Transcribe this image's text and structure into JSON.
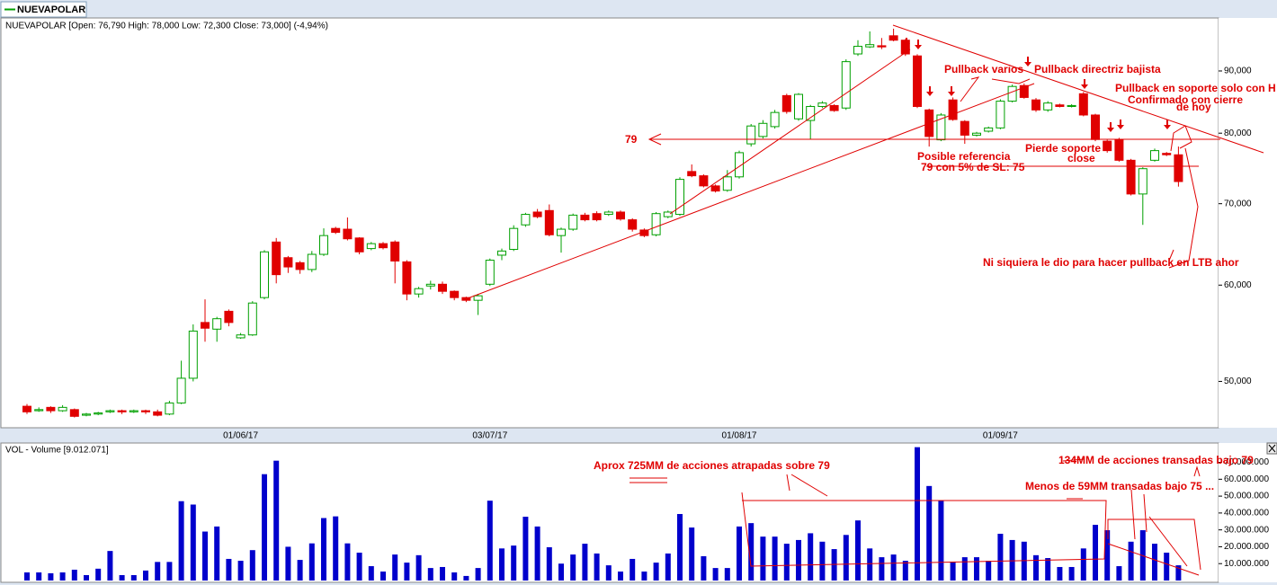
{
  "tab": "NUEVAPOLAR",
  "chart_data": [
    {
      "type": "candlestick",
      "title": "NUEVAPOLAR [Open: 76,790  High: 78,000  Low: 72,300  Close: 73,000] (-4,94%)",
      "categories": [
        null,
        null,
        null,
        null,
        null,
        null,
        null,
        null,
        null,
        null,
        null,
        null,
        null,
        null,
        null,
        null,
        null,
        null,
        "01/06/17",
        null,
        null,
        null,
        null,
        null,
        null,
        null,
        null,
        null,
        null,
        null,
        null,
        null,
        null,
        null,
        null,
        null,
        null,
        null,
        null,
        "03/07/17",
        null,
        null,
        null,
        null,
        null,
        null,
        null,
        null,
        null,
        null,
        null,
        null,
        null,
        null,
        null,
        null,
        null,
        null,
        null,
        null,
        "01/08/17",
        null,
        null,
        null,
        null,
        null,
        null,
        null,
        null,
        null,
        null,
        null,
        null,
        null,
        null,
        null,
        null,
        null,
        null,
        null,
        null,
        null,
        "01/09/17",
        null,
        null,
        null,
        null,
        null,
        null,
        null,
        null,
        null,
        null,
        null,
        null,
        null,
        null,
        null
      ],
      "open": [
        47.7,
        47.3,
        47.6,
        47.3,
        47.4,
        46.9,
        47.0,
        47.2,
        47.3,
        47.2,
        47.3,
        47.2,
        47.0,
        48.0,
        50.3,
        55.9,
        55.2,
        57.1,
        54.3,
        54.6,
        58.6,
        65.1,
        63.2,
        62.6,
        61.8,
        63.6,
        66.8,
        66.7,
        65.6,
        64.3,
        64.9,
        65.1,
        62.7,
        59.0,
        59.9,
        60.1,
        59.3,
        58.6,
        58.3,
        60.1,
        63.5,
        64.2,
        67.25,
        68.9,
        69.1,
        65.9,
        66.7,
        68.5,
        68.7,
        68.6,
        68.9,
        67.9,
        66.6,
        66.0,
        68.3,
        68.6,
        74.4,
        73.8,
        72.4,
        71.8,
        73.65,
        78.4,
        79.5,
        81.0,
        85.9,
        82.2,
        81.95,
        84.15,
        84.3,
        83.9,
        92.95,
        94.2,
        94.4,
        96.2,
        95.4,
        92.6,
        83.6,
        79.0,
        85.2,
        81.8,
        79.7,
        80.3,
        80.8,
        85.0,
        87.55,
        85.2,
        83.6,
        84.4,
        84.15,
        86.2,
        82.8,
        78.8,
        79.05,
        76.0,
        71.3,
        76.0,
        77.0,
        76.79
      ],
      "high": [
        47.9,
        47.6,
        47.7,
        47.8,
        47.5,
        47.1,
        47.2,
        47.4,
        47.4,
        47.4,
        47.4,
        47.4,
        48.2,
        52.0,
        55.7,
        58.4,
        56.5,
        57.3,
        54.8,
        58.2,
        64.1,
        65.6,
        63.4,
        62.8,
        64.0,
        66.8,
        67.0,
        68.2,
        65.7,
        65.1,
        65.1,
        65.3,
        62.9,
        59.8,
        60.5,
        60.4,
        59.4,
        58.7,
        59.0,
        63.1,
        64.3,
        67.2,
        68.8,
        69.3,
        69.9,
        66.9,
        68.7,
        68.8,
        69.0,
        69.1,
        69.1,
        68.1,
        66.8,
        68.9,
        69.1,
        73.6,
        75.4,
        74.0,
        72.6,
        74.6,
        77.4,
        81.4,
        82.0,
        83.6,
        86.2,
        86.3,
        84.4,
        85.0,
        84.5,
        92.0,
        95.4,
        97.0,
        95.8,
        97.5,
        95.6,
        92.9,
        83.8,
        83.1,
        85.6,
        82.0,
        80.2,
        81.0,
        85.3,
        87.7,
        87.9,
        85.5,
        85.0,
        84.6,
        84.5,
        86.5,
        83.0,
        79.0,
        79.3,
        76.2,
        75.0,
        77.7,
        77.2,
        78.0
      ],
      "low": [
        47.0,
        47.2,
        47.1,
        47.2,
        46.7,
        46.8,
        46.9,
        47.1,
        47.0,
        47.1,
        47.0,
        46.8,
        46.9,
        47.9,
        50.0,
        53.9,
        53.9,
        55.5,
        54.2,
        54.5,
        58.4,
        60.2,
        61.4,
        61.3,
        61.5,
        63.4,
        66.1,
        65.3,
        63.6,
        64.1,
        64.2,
        60.2,
        58.3,
        58.6,
        59.5,
        59.0,
        58.3,
        58.1,
        56.7,
        59.9,
        62.9,
        64.0,
        67.0,
        68.1,
        65.8,
        63.8,
        66.5,
        67.7,
        67.7,
        68.4,
        67.8,
        66.4,
        65.7,
        65.8,
        68.1,
        68.4,
        73.6,
        72.2,
        71.5,
        71.6,
        73.4,
        78.0,
        79.2,
        80.7,
        83.0,
        81.9,
        79.05,
        83.9,
        83.3,
        83.6,
        92.6,
        94.0,
        93.8,
        95.2,
        92.6,
        83.9,
        78.0,
        78.8,
        81.9,
        78.4,
        79.5,
        80.1,
        80.6,
        84.8,
        85.4,
        83.3,
        83.3,
        84.0,
        84.0,
        82.6,
        78.8,
        77.1,
        75.8,
        71.1,
        67.25,
        75.8,
        76.6,
        72.3
      ],
      "close": [
        47.2,
        47.4,
        47.3,
        47.6,
        46.8,
        47.0,
        47.1,
        47.3,
        47.2,
        47.3,
        47.2,
        46.9,
        48.0,
        50.3,
        55.0,
        55.3,
        56.3,
        55.9,
        54.6,
        58.0,
        63.9,
        61.2,
        62.1,
        61.8,
        63.6,
        65.9,
        66.3,
        65.5,
        63.9,
        64.9,
        64.4,
        62.8,
        59.0,
        59.6,
        60.1,
        59.3,
        58.6,
        58.3,
        58.8,
        62.9,
        64.0,
        66.8,
        68.6,
        68.3,
        66.0,
        66.7,
        68.5,
        67.9,
        67.9,
        68.9,
        68.0,
        66.7,
        65.9,
        68.7,
        68.9,
        73.3,
        73.8,
        72.4,
        71.7,
        73.65,
        77.1,
        81.1,
        81.5,
        83.2,
        83.35,
        86.1,
        84.15,
        84.7,
        83.5,
        91.6,
        94.3,
        94.6,
        94.2,
        95.4,
        92.95,
        84.15,
        79.5,
        82.8,
        82.1,
        79.7,
        80.0,
        80.8,
        85.0,
        87.4,
        85.6,
        83.6,
        84.7,
        84.15,
        84.3,
        82.8,
        79.05,
        77.4,
        76.0,
        71.3,
        74.8,
        77.4,
        76.8,
        73.0
      ],
      "up_color": "#00a000",
      "down_color": "#e00000",
      "log_scale": true,
      "ylim": [
        45.8,
        99.5
      ],
      "yticks": [
        {
          "value": 50,
          "label": "50,000"
        },
        {
          "value": 60,
          "label": "60,000"
        },
        {
          "value": 70,
          "label": "70,000"
        },
        {
          "value": 80,
          "label": "80,000"
        },
        {
          "value": 90,
          "label": "90,000"
        }
      ],
      "annotations": [
        "79",
        "Pullback varios",
        "Pullback directriz bajista",
        "Pullback en soporte solo con H",
        "Confirmado con cierre",
        "de hoy",
        "Posible referencia",
        "79 con 5% de SL: 75",
        "Pierde soporte",
        "close",
        "Ni siquiera le dio para hacer pullback en LTB ahor"
      ]
    },
    {
      "type": "bar",
      "title": "VOL - Volume [9.012.071]",
      "values": [
        4800000,
        4800000,
        4300000,
        4800000,
        6400000,
        3200000,
        7000000,
        17500000,
        3200000,
        3200000,
        5900000,
        11000000,
        11000000,
        47000000,
        45000000,
        29000000,
        32000000,
        12800000,
        11700000,
        18000000,
        63000000,
        71000000,
        20000000,
        12200000,
        22000000,
        37000000,
        38000000,
        22000000,
        16500000,
        8500000,
        5300000,
        15400000,
        10600000,
        15000000,
        7400000,
        8000000,
        4800000,
        2700000,
        7400000,
        47300000,
        19000000,
        20700000,
        37800000,
        32000000,
        19700000,
        10000000,
        15400000,
        21800000,
        16000000,
        9000000,
        5300000,
        12800000,
        5300000,
        10600000,
        16000000,
        39400000,
        31400000,
        14400000,
        7400000,
        7400000,
        32000000,
        34000000,
        26000000,
        26000000,
        21800000,
        24000000,
        28000000,
        23000000,
        18600000,
        27000000,
        35600000,
        19000000,
        13800000,
        15400000,
        11700000,
        79000000,
        56000000,
        47300000,
        11200000,
        13800000,
        13800000,
        11700000,
        27700000,
        24000000,
        23000000,
        15000000,
        13300000,
        8000000,
        8000000,
        19000000,
        33000000,
        29800000,
        8500000,
        23000000,
        29800000,
        21800000,
        16500000,
        9012071
      ],
      "color": "#0000cc",
      "ylim": [
        0,
        82000000
      ],
      "yticks": [
        {
          "value": 10000000,
          "label": "10.000.000"
        },
        {
          "value": 20000000,
          "label": "20.000.000"
        },
        {
          "value": 30000000,
          "label": "30.000.000"
        },
        {
          "value": 40000000,
          "label": "40.000.000"
        },
        {
          "value": 50000000,
          "label": "50.000.000"
        },
        {
          "value": 60000000,
          "label": "60.000.000"
        },
        {
          "value": 70000000,
          "label": "70.000.000"
        }
      ],
      "annotations": [
        "Aprox 725MM de acciones atrapadas sobre 79",
        "134MM de acciones transadas bajo 79",
        "Menos de 59MM transadas bajo 75 ..."
      ]
    }
  ]
}
